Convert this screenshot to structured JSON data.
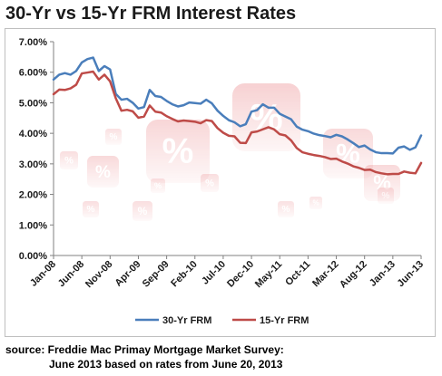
{
  "title": "30-Yr vs 15-Yr FRM Interest Rates",
  "source": {
    "line1": "source: Freddie Mac Primay Mortgage Market Survey:",
    "line2": "June 2013 based on rates from June 20, 2013"
  },
  "colors": {
    "series_30": "#4a7ebb",
    "series_15": "#be4b48",
    "decor_red": "#d9262b"
  },
  "decor": {
    "glyph": "%"
  },
  "chart_data": {
    "type": "line",
    "title": "30-Yr vs 15-Yr FRM Interest Rates",
    "xlabel": "",
    "ylabel": "",
    "ylim": [
      0,
      7
    ],
    "y_ticks": [
      "0.00%",
      "1.00%",
      "2.00%",
      "3.00%",
      "4.00%",
      "5.00%",
      "6.00%",
      "7.00%"
    ],
    "x_ticks": [
      {
        "label": "Jan-08",
        "index": 0
      },
      {
        "label": "Jun-08",
        "index": 5
      },
      {
        "label": "Nov-08",
        "index": 10
      },
      {
        "label": "Apr-09",
        "index": 15
      },
      {
        "label": "Sep-09",
        "index": 20
      },
      {
        "label": "Feb-10",
        "index": 25
      },
      {
        "label": "Jul-10",
        "index": 30
      },
      {
        "label": "Dec-10",
        "index": 35
      },
      {
        "label": "May-11",
        "index": 40
      },
      {
        "label": "Oct-11",
        "index": 45
      },
      {
        "label": "Mar-12",
        "index": 50
      },
      {
        "label": "Aug-12",
        "index": 55
      },
      {
        "label": "Jan-13",
        "index": 60
      },
      {
        "label": "Jun-13",
        "index": 65
      }
    ],
    "legend": "bottom",
    "grid": false,
    "series": [
      {
        "name": "30-Yr FRM",
        "values": [
          5.76,
          5.92,
          5.97,
          5.92,
          6.04,
          6.32,
          6.43,
          6.48,
          6.04,
          6.2,
          6.09,
          5.29,
          5.1,
          5.13,
          5.0,
          4.81,
          4.86,
          5.42,
          5.22,
          5.19,
          5.06,
          4.95,
          4.88,
          4.92,
          5.01,
          4.99,
          4.97,
          5.1,
          4.98,
          4.74,
          4.57,
          4.43,
          4.36,
          4.23,
          4.3,
          4.71,
          4.76,
          4.95,
          4.84,
          4.84,
          4.64,
          4.55,
          4.46,
          4.22,
          4.12,
          4.07,
          3.99,
          3.94,
          3.91,
          3.87,
          3.95,
          3.9,
          3.8,
          3.68,
          3.55,
          3.6,
          3.47,
          3.38,
          3.35,
          3.35,
          3.34,
          3.53,
          3.57,
          3.46,
          3.54,
          3.93
        ]
      },
      {
        "name": "15-Yr FRM",
        "values": [
          5.28,
          5.43,
          5.42,
          5.47,
          5.59,
          5.96,
          5.99,
          6.02,
          5.76,
          5.92,
          5.7,
          5.15,
          4.74,
          4.77,
          4.72,
          4.51,
          4.55,
          4.91,
          4.71,
          4.68,
          4.56,
          4.47,
          4.39,
          4.42,
          4.4,
          4.38,
          4.33,
          4.43,
          4.4,
          4.17,
          4.02,
          3.92,
          3.9,
          3.69,
          3.68,
          4.03,
          4.06,
          4.13,
          4.2,
          4.13,
          3.97,
          3.93,
          3.77,
          3.52,
          3.38,
          3.33,
          3.29,
          3.26,
          3.22,
          3.16,
          3.17,
          3.08,
          3.01,
          2.92,
          2.87,
          2.8,
          2.81,
          2.73,
          2.69,
          2.66,
          2.67,
          2.67,
          2.75,
          2.71,
          2.69,
          3.03
        ]
      }
    ]
  }
}
